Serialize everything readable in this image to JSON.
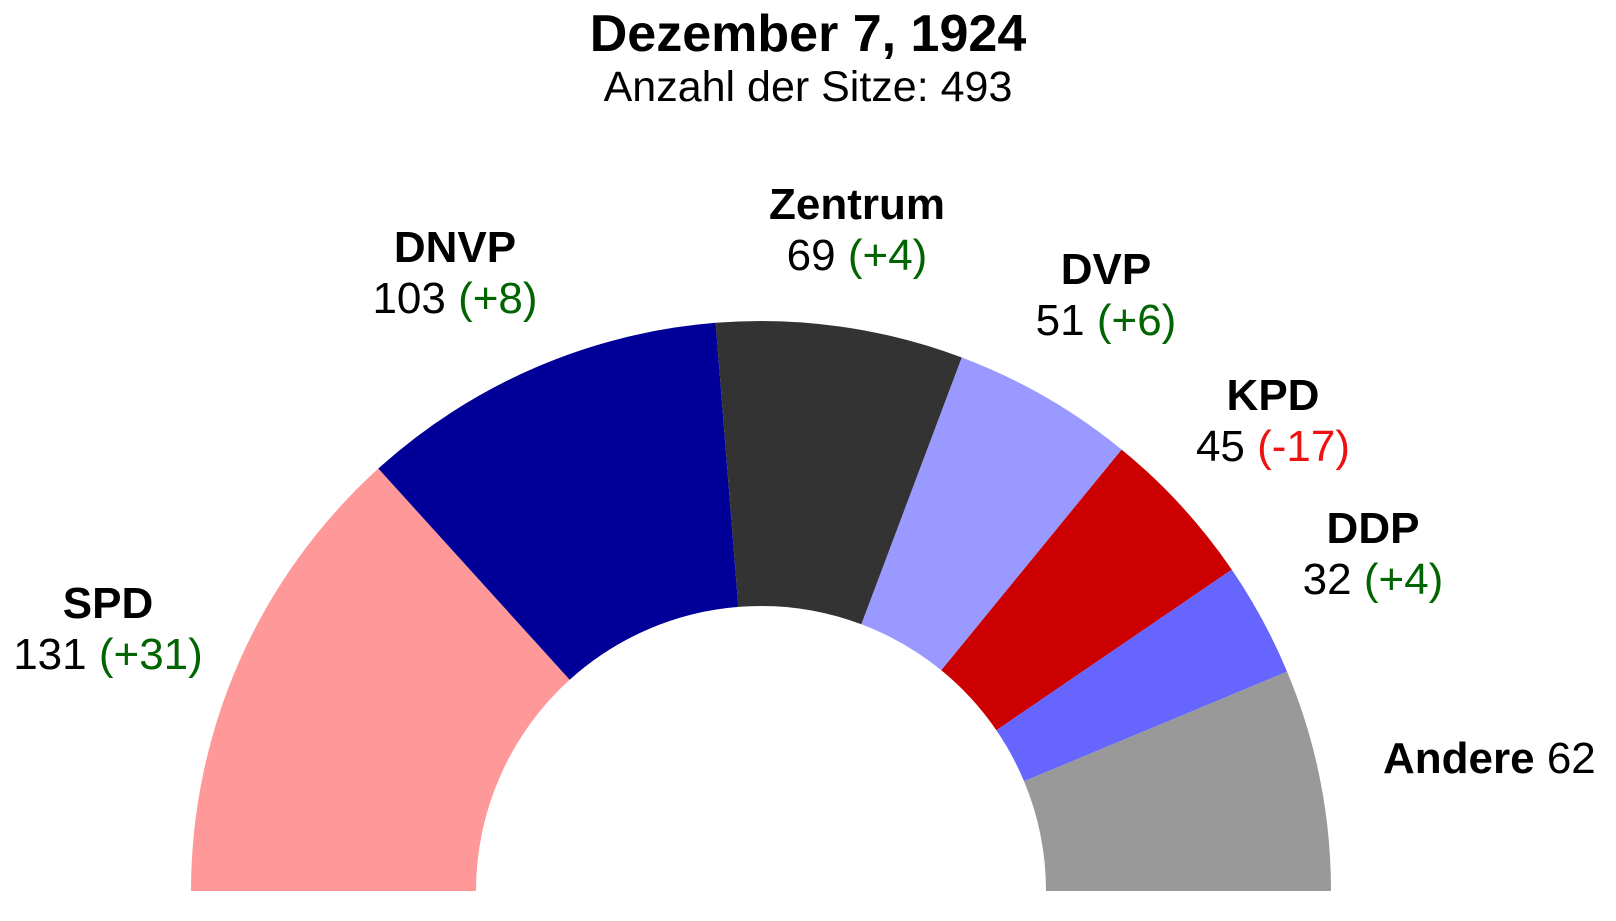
{
  "chart_data": {
    "type": "pie",
    "subtype": "parliament-semicircle",
    "title": "Dezember 7, 1924",
    "subtitle": "Anzahl der Sitze: 493",
    "total_seats": 493,
    "parties": [
      {
        "name": "SPD",
        "seats": 131,
        "change": "(+31)",
        "change_color": "#006400",
        "color": "#FF9999"
      },
      {
        "name": "DNVP",
        "seats": 103,
        "change": "(+8)",
        "change_color": "#006400",
        "color": "#000099"
      },
      {
        "name": "Zentrum",
        "seats": 69,
        "change": "(+4)",
        "change_color": "#006400",
        "color": "#333333"
      },
      {
        "name": "DVP",
        "seats": 51,
        "change": "(+6)",
        "change_color": "#006400",
        "color": "#9999FF"
      },
      {
        "name": "KPD",
        "seats": 45,
        "change": "(-17)",
        "change_color": "#EE1111",
        "color": "#CC0000"
      },
      {
        "name": "DDP",
        "seats": 32,
        "change": "(+4)",
        "change_color": "#006400",
        "color": "#6666FF"
      },
      {
        "name": "Andere",
        "seats": 62,
        "change": "",
        "change_color": "#006400",
        "color": "#999999"
      }
    ]
  }
}
